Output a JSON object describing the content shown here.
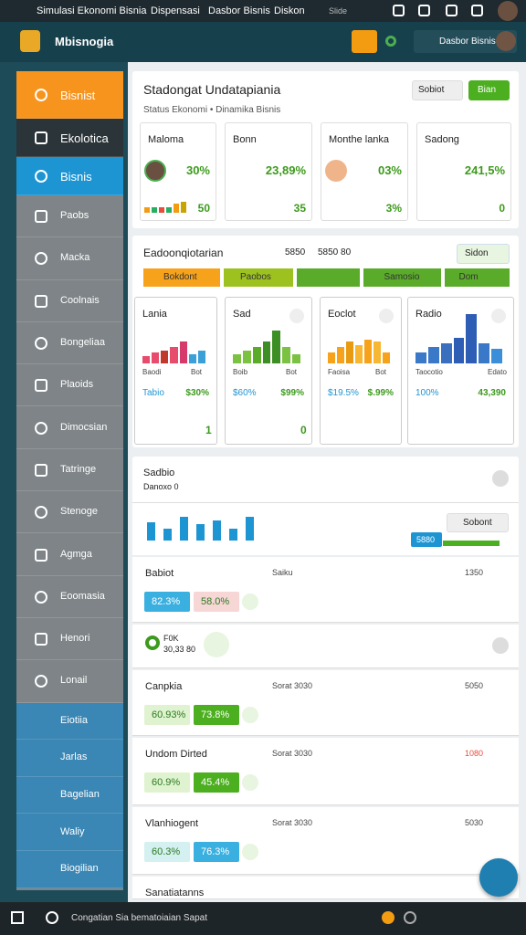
{
  "status_bar": {
    "items": [
      "Simulasi Ekonomi Bisnia",
      "Dispensasi",
      "Dasbor Bisnis",
      "Diskon"
    ],
    "tag": "Slide"
  },
  "header": {
    "brand": "Mbisnogia",
    "account": "Dasbor Bisnis"
  },
  "sidebar": {
    "items": [
      "Bisnist",
      "Ekolotica",
      "Bisnis",
      "Paobs",
      "Macka",
      "Coolnais",
      "Bongeliaa",
      "Plaoids",
      "Dimocsian",
      "Tatringe",
      "Stenoge",
      "Agmga",
      "Eoomasia",
      "Henori",
      "Lonail",
      "Eiotiia",
      "Jarlas",
      "Bagelian",
      "Waliy",
      "Biogilian"
    ]
  },
  "summary": {
    "title": "Stadongat Undatapiania",
    "subtitle": "Status Ekonomi • Dinamika Bisnis",
    "buttons": [
      "Sobiot",
      "Bian"
    ],
    "cards": [
      {
        "label": "Maloma",
        "value": "30%",
        "foot": "50",
        "bars": [
          3,
          3,
          3,
          3,
          5,
          6
        ],
        "colors": [
          "#f39c12",
          "#27ae60",
          "#e74c3c",
          "#27ae60",
          "#f39c12",
          "#c9a400"
        ]
      },
      {
        "label": "Bonn",
        "value": "23,89%",
        "foot": "35"
      },
      {
        "label": "Monthe lanka",
        "value": "03%",
        "foot": "3%"
      },
      {
        "label": "Sadong",
        "value": "241,5%",
        "foot": "0"
      }
    ]
  },
  "analysis": {
    "title": "Eadoonqiotarian",
    "meta": [
      "5850",
      "5850 80"
    ],
    "button": "Sidon",
    "tabs": [
      {
        "label": "Bokdont",
        "color": "#f7a21b"
      },
      {
        "label": "Paobos",
        "color": "#9dc21f"
      },
      {
        "label": "Samosio",
        "color": "#5aab2a"
      },
      {
        "label": "Dom",
        "color": "#5aab2a"
      }
    ],
    "charts": [
      {
        "title": "Lania",
        "x_labels": [
          "Baodi",
          "Bot"
        ],
        "left": "Tabio",
        "right": "$30%",
        "total": "1",
        "values": [
          4,
          6,
          7,
          9,
          12,
          5,
          7
        ],
        "colors": [
          "#e74c6c",
          "#e74c6c",
          "#c0392b",
          "#e74c6c",
          "#d63a6a",
          "#3aa0d8",
          "#3aa0d8"
        ]
      },
      {
        "title": "Sad",
        "x_labels": [
          "Boib",
          "Bot"
        ],
        "left": "$60%",
        "right": "$99%",
        "total": "0",
        "values": [
          5,
          7,
          9,
          12,
          18,
          9,
          5
        ],
        "colors": [
          "#7cc242",
          "#7cc242",
          "#5aab2a",
          "#3b8f24",
          "#3b8f24",
          "#7cc242",
          "#7cc242"
        ]
      },
      {
        "title": "Eoclot",
        "x_labels": [
          "Faoisa",
          "Bot"
        ],
        "left": "$19.5%",
        "right": "$.99%",
        "total": "",
        "values": [
          6,
          9,
          12,
          10,
          13,
          12,
          6
        ],
        "colors": [
          "#f7a21b",
          "#f7a21b",
          "#e89a10",
          "#f7b733",
          "#f7a21b",
          "#f7b733",
          "#f7a21b"
        ]
      },
      {
        "title": "Radio",
        "x_labels": [
          "Taocotio",
          "Edato"
        ],
        "left": "100%",
        "right": "43,390",
        "total": "",
        "values": [
          6,
          9,
          11,
          14,
          27,
          11,
          8
        ],
        "colors": [
          "#3a78c8",
          "#3a78c8",
          "#3a6fc0",
          "#2e5db5",
          "#2e5db5",
          "#3a78c8",
          "#3a8fd8"
        ]
      }
    ]
  },
  "trend": {
    "title": "Sadbio",
    "subtitle": "Danoxo 0",
    "values": [
      9,
      6,
      12,
      8,
      10,
      6,
      12
    ],
    "button": "Sobont",
    "badge": "5880"
  },
  "list": [
    {
      "title": "Babiot",
      "meta": "Saiku",
      "value": "1350",
      "chips": [
        "82.3%",
        "58.0%"
      ]
    },
    {
      "title": "F0K",
      "meta": "30,33 80"
    },
    {
      "title": "Canpkia",
      "meta": "Sorat 3030",
      "value": "5050",
      "chips": [
        "60.93%",
        "73.8%"
      ]
    },
    {
      "title": "Undom Dirted",
      "meta": "Sorat 3030",
      "value": "1080",
      "chips": [
        "60.9%",
        "45.4%"
      ]
    },
    {
      "title": "Vlanhiogent",
      "meta": "Sorat 3030",
      "value": "5030",
      "chips": [
        "60.3%",
        "76.3%"
      ]
    },
    {
      "title": "Sanatiatanns"
    }
  ],
  "taskbar": {
    "text": "Congatian Sia bematoiaian Sapat"
  }
}
